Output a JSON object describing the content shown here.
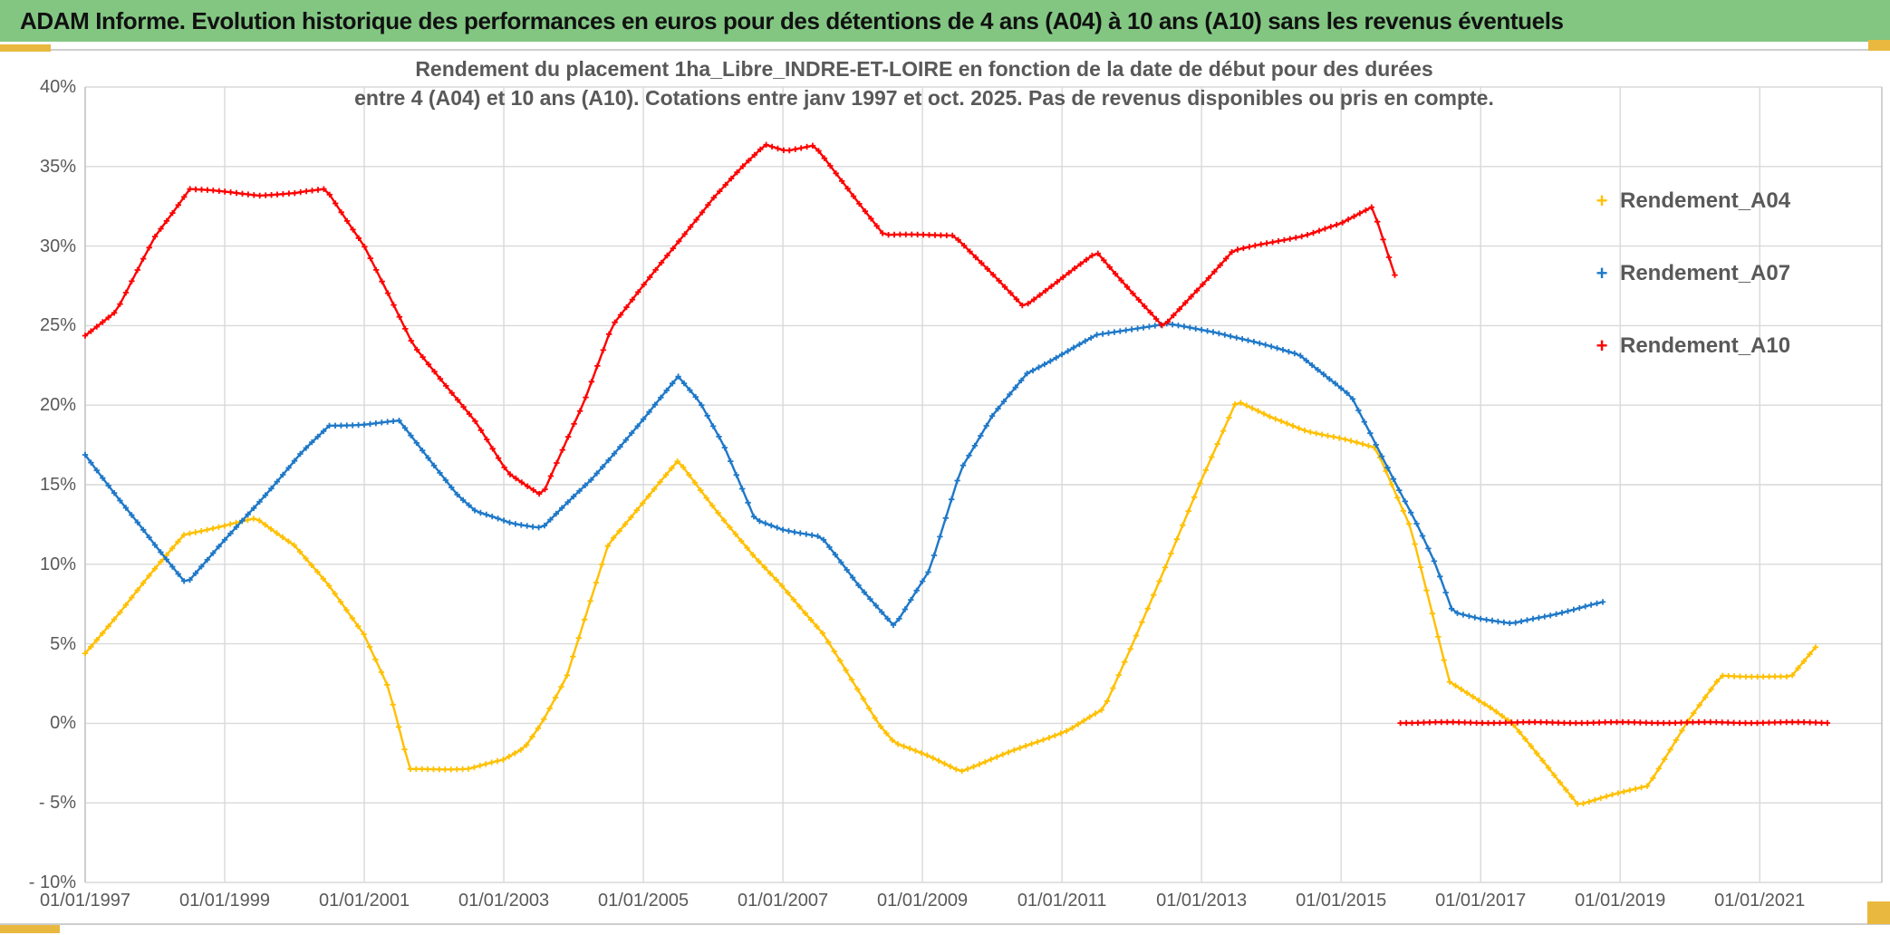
{
  "window_title": "ADAM Informe. Evolution historique des performances en euros pour des détentions de 4 ans (A04) à 10 ans (A10) sans les revenus éventuels",
  "frame": {
    "band_color": "#82C682",
    "accent_color": "#E9B83E",
    "rule_color": "#CFCECE"
  },
  "chart": {
    "title_line1": "Rendement du placement 1ha_Libre_INDRE-ET-LOIRE en fonction de la date de début pour des durées",
    "title_line2": "entre 4 (A04) et 10 ans (A10). Cotations entre janv 1997 et oct. 2025. Pas de revenus disponibles ou pris en compte.",
    "text_color": "#595959",
    "grid_color": "#D9D9D9",
    "axis_color": "#C6C6C6"
  },
  "chart_data": {
    "type": "scatter",
    "marker": "plus",
    "title": "Rendement du placement 1ha_Libre_INDRE-ET-LOIRE en fonction de la date de début pour des durées entre 4 (A04) et 10 ans (A10). Cotations entre janv 1997 et oct. 2025. Pas de revenus disponibles ou pris en compte.",
    "xlabel": "",
    "ylabel": "",
    "x_range": [
      1997,
      2022.75
    ],
    "y_range": [
      -10,
      40
    ],
    "grid": true,
    "legend_position": "right",
    "x_ticks": [
      {
        "label": "01/01/1997",
        "year": 1997
      },
      {
        "label": "01/01/1999",
        "year": 1999
      },
      {
        "label": "01/01/2001",
        "year": 2001
      },
      {
        "label": "01/01/2003",
        "year": 2003
      },
      {
        "label": "01/01/2005",
        "year": 2005
      },
      {
        "label": "01/01/2007",
        "year": 2007
      },
      {
        "label": "01/01/2009",
        "year": 2009
      },
      {
        "label": "01/01/2011",
        "year": 2011
      },
      {
        "label": "01/01/2013",
        "year": 2013
      },
      {
        "label": "01/01/2015",
        "year": 2015
      },
      {
        "label": "01/01/2017",
        "year": 2017
      },
      {
        "label": "01/01/2019",
        "year": 2019
      },
      {
        "label": "01/01/2021",
        "year": 2021
      }
    ],
    "y_ticks": [
      {
        "label": "40%",
        "value": 40
      },
      {
        "label": "35%",
        "value": 35
      },
      {
        "label": "30%",
        "value": 30
      },
      {
        "label": "25%",
        "value": 25
      },
      {
        "label": "20%",
        "value": 20
      },
      {
        "label": "15%",
        "value": 15
      },
      {
        "label": "10%",
        "value": 10
      },
      {
        "label": "5%",
        "value": 5
      },
      {
        "label": "0%",
        "value": 0
      },
      {
        "label": "- 5%",
        "value": -5
      },
      {
        "label": "- 10%",
        "value": -10
      }
    ],
    "series": [
      {
        "name": "Rendement_A04",
        "color": "#FFC000",
        "segments": [
          [
            [
              1997.0,
              4.4
            ],
            [
              1997.5,
              7.0
            ],
            [
              1998.0,
              9.7
            ],
            [
              1998.42,
              11.9
            ],
            [
              1999.0,
              12.4
            ],
            [
              1999.45,
              12.9
            ],
            [
              2000.0,
              11.2
            ],
            [
              2000.5,
              8.6
            ],
            [
              2001.0,
              5.6
            ],
            [
              2001.35,
              2.2
            ],
            [
              2001.65,
              -2.9
            ],
            [
              2002.5,
              -2.85
            ],
            [
              2003.0,
              -2.3
            ],
            [
              2003.3,
              -1.5
            ],
            [
              2003.55,
              0.1
            ],
            [
              2003.9,
              2.9
            ],
            [
              2004.5,
              11.3
            ],
            [
              2005.0,
              13.9
            ],
            [
              2005.5,
              16.5
            ],
            [
              2006.15,
              12.8
            ],
            [
              2006.6,
              10.4
            ],
            [
              2007.0,
              8.6
            ],
            [
              2007.58,
              5.6
            ],
            [
              2008.37,
              0.0
            ],
            [
              2008.6,
              -1.2
            ],
            [
              2009.1,
              -2.1
            ],
            [
              2009.55,
              -3.0
            ],
            [
              2010.2,
              -1.9
            ],
            [
              2011.1,
              -0.4
            ],
            [
              2011.6,
              0.9
            ],
            [
              2012.0,
              4.9
            ],
            [
              2012.5,
              10.0
            ],
            [
              2013.0,
              15.3
            ],
            [
              2013.5,
              20.3
            ],
            [
              2014.0,
              19.2
            ],
            [
              2014.5,
              18.4
            ],
            [
              2015.0,
              17.9
            ],
            [
              2015.5,
              17.3
            ],
            [
              2016.0,
              12.3
            ],
            [
              2016.55,
              2.6
            ],
            [
              2017.15,
              1.0
            ],
            [
              2017.45,
              0.0
            ],
            [
              2018.4,
              -5.1
            ],
            [
              2019.4,
              -3.9
            ],
            [
              2019.95,
              0.0
            ],
            [
              2020.45,
              3.0
            ],
            [
              2021.45,
              2.9
            ],
            [
              2021.8,
              4.8
            ]
          ]
        ]
      },
      {
        "name": "Rendement_A07",
        "color": "#1E78C8",
        "segments": [
          [
            [
              1997.0,
              16.9
            ],
            [
              1997.5,
              14.0
            ],
            [
              1998.0,
              11.2
            ],
            [
              1998.45,
              8.8
            ],
            [
              1999.0,
              11.5
            ],
            [
              1999.55,
              14.2
            ],
            [
              2000.1,
              17.0
            ],
            [
              2000.5,
              18.7
            ],
            [
              2001.0,
              18.8
            ],
            [
              2001.5,
              19.0
            ],
            [
              2002.35,
              14.3
            ],
            [
              2002.6,
              13.3
            ],
            [
              2003.1,
              12.6
            ],
            [
              2003.55,
              12.3
            ],
            [
              2004.25,
              15.3
            ],
            [
              2005.0,
              19.1
            ],
            [
              2005.5,
              21.8
            ],
            [
              2005.8,
              20.3
            ],
            [
              2006.15,
              17.5
            ],
            [
              2006.6,
              12.8
            ],
            [
              2007.0,
              12.2
            ],
            [
              2007.55,
              11.7
            ],
            [
              2008.1,
              8.6
            ],
            [
              2008.6,
              6.1
            ],
            [
              2009.1,
              9.6
            ],
            [
              2009.55,
              16.0
            ],
            [
              2010.0,
              19.3
            ],
            [
              2010.5,
              22.0
            ],
            [
              2011.5,
              24.4
            ],
            [
              2012.0,
              24.8
            ],
            [
              2012.5,
              25.1
            ],
            [
              2013.2,
              24.6
            ],
            [
              2014.4,
              23.2
            ],
            [
              2015.15,
              20.5
            ],
            [
              2015.55,
              17.1
            ],
            [
              2016.1,
              12.4
            ],
            [
              2016.35,
              10.0
            ],
            [
              2016.6,
              7.0
            ],
            [
              2017.0,
              6.6
            ],
            [
              2017.45,
              6.25
            ],
            [
              2018.0,
              6.8
            ],
            [
              2018.45,
              7.3
            ],
            [
              2018.75,
              7.6
            ]
          ]
        ]
      },
      {
        "name": "Rendement_A10",
        "color": "#FE0000",
        "segments": [
          [
            [
              1997.0,
              24.4
            ],
            [
              1997.45,
              25.9
            ],
            [
              1998.0,
              30.6
            ],
            [
              1998.5,
              33.6
            ],
            [
              1999.0,
              33.4
            ],
            [
              1999.5,
              33.2
            ],
            [
              2000.0,
              33.3
            ],
            [
              2000.45,
              33.6
            ],
            [
              2001.0,
              30.0
            ],
            [
              2001.7,
              23.8
            ],
            [
              2002.6,
              18.9
            ],
            [
              2003.05,
              15.8
            ],
            [
              2003.55,
              14.3
            ],
            [
              2004.15,
              20.2
            ],
            [
              2004.55,
              25.0
            ],
            [
              2005.45,
              30.0
            ],
            [
              2006.0,
              33.0
            ],
            [
              2006.45,
              35.1
            ],
            [
              2006.75,
              36.4
            ],
            [
              2007.05,
              36.0
            ],
            [
              2007.45,
              36.3
            ],
            [
              2008.45,
              30.7
            ],
            [
              2009.45,
              30.7
            ],
            [
              2010.45,
              26.2
            ],
            [
              2011.5,
              29.6
            ],
            [
              2012.45,
              24.9
            ],
            [
              2013.45,
              29.7
            ],
            [
              2014.5,
              30.7
            ],
            [
              2015.0,
              31.4
            ],
            [
              2015.45,
              32.5
            ],
            [
              2015.77,
              28.2
            ]
          ],
          [
            [
              2015.85,
              0.05
            ],
            [
              2021.97,
              0.05
            ]
          ]
        ]
      }
    ]
  }
}
